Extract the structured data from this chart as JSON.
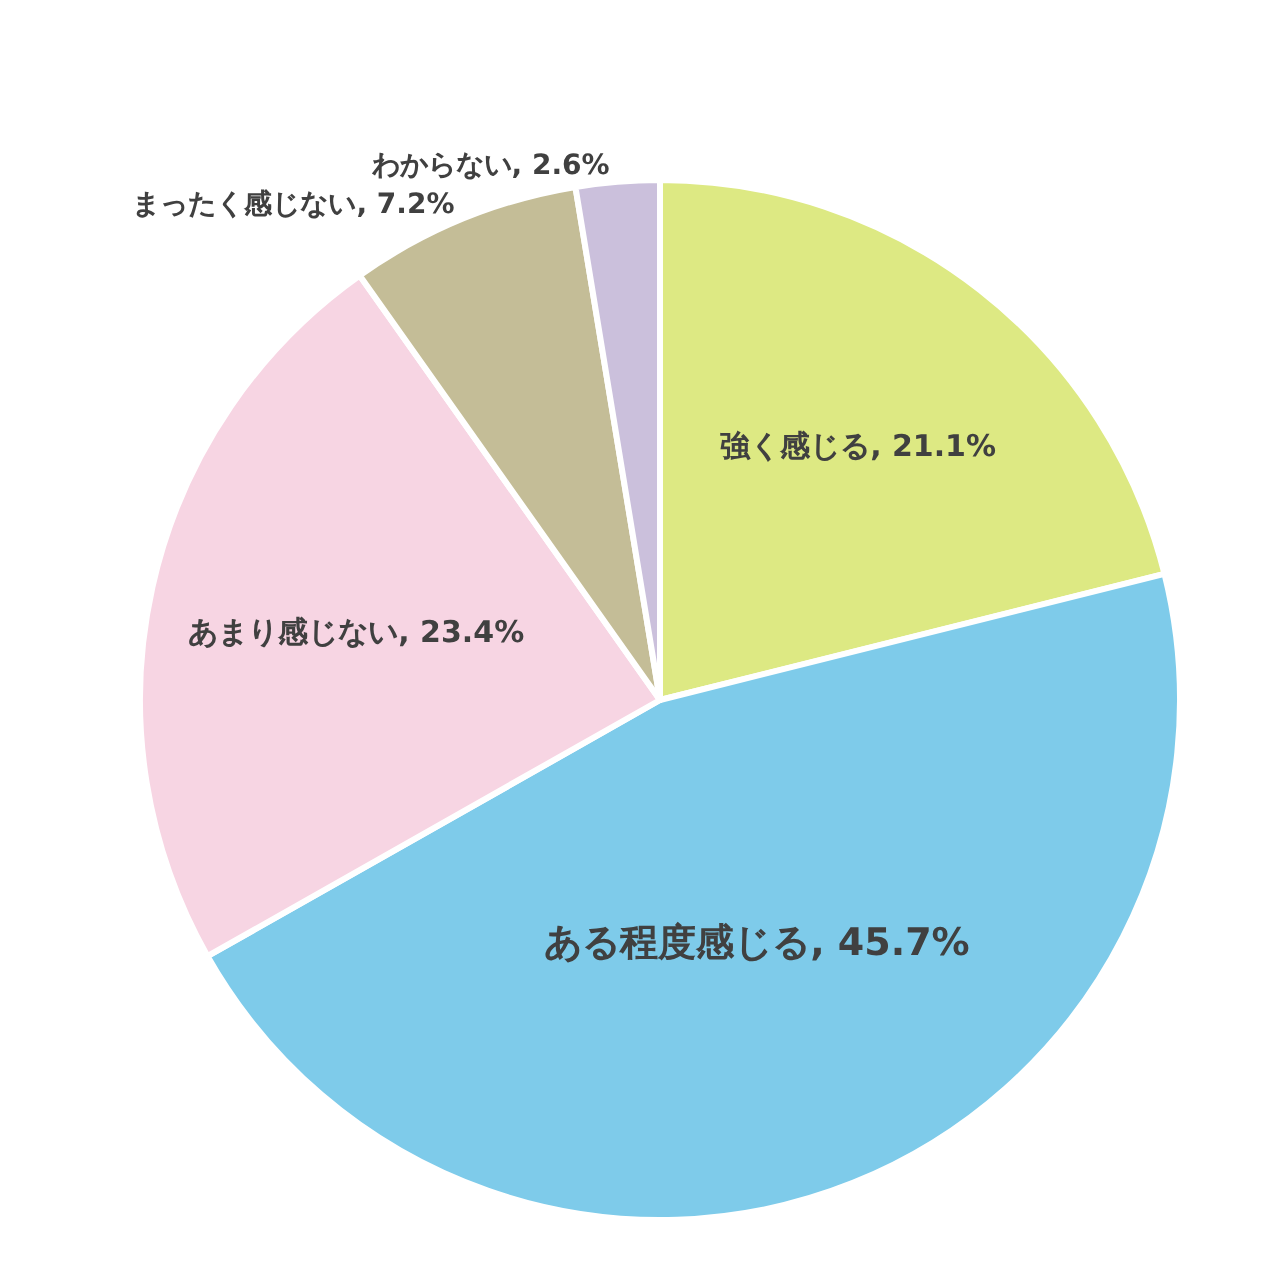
{
  "chart_data": {
    "type": "pie",
    "categories": [
      "強く感じる",
      "ある程度感じる",
      "あまり感じない",
      "まったく感じない",
      "わからない"
    ],
    "values": [
      21.1,
      45.7,
      23.4,
      7.2,
      2.6
    ],
    "value_labels": [
      "21.1%",
      "45.7%",
      "23.4%",
      "7.2%",
      "2.6%"
    ],
    "colors": [
      "#dde983",
      "#7ecbea",
      "#f7d5e3",
      "#c4bd97",
      "#cbc0dc"
    ],
    "legend": false
  }
}
